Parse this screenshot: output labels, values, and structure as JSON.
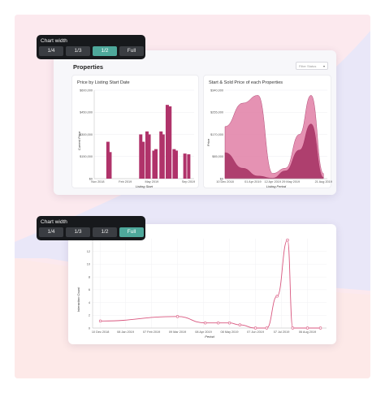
{
  "toolbar_top": {
    "title": "Chart width",
    "options": [
      "1/4",
      "1/3",
      "1/2",
      "Full"
    ],
    "selected": "1/2"
  },
  "toolbar_bottom": {
    "title": "Chart width",
    "options": [
      "1/4",
      "1/3",
      "1/2",
      "Full"
    ],
    "selected": "Full"
  },
  "dashboard": {
    "title": "Properties",
    "filter_placeholder": "Filter Status"
  },
  "colors": {
    "bar": "#b0336a",
    "area_light": "#e07fa6",
    "area_dark": "#a02a5c",
    "line": "#d9577f",
    "accent": "#4ea89b"
  },
  "chart_data": [
    {
      "type": "bar",
      "title": "Price by Listing Start Date",
      "xlabel": "Listing Start",
      "ylabel": "Current Price",
      "yticks": [
        "$0",
        "$150,000",
        "$300,000",
        "$450,000",
        "$600,000"
      ],
      "ylim": [
        0,
        600000
      ],
      "xticks": [
        "Nov 2018",
        "Feb 2019",
        "May 2019",
        "Sep 2019"
      ],
      "x": [
        "2018-12-05",
        "2018-12-12",
        "2019-03-25",
        "2019-04-02",
        "2019-04-15",
        "2019-04-22",
        "2019-05-08",
        "2019-05-15",
        "2019-06-01",
        "2019-06-08",
        "2019-06-22",
        "2019-07-01",
        "2019-07-15",
        "2019-07-22",
        "2019-08-20",
        "2019-09-02"
      ],
      "values": [
        250000,
        180000,
        300000,
        250000,
        320000,
        300000,
        190000,
        200000,
        320000,
        300000,
        500000,
        490000,
        200000,
        190000,
        170000,
        165000
      ]
    },
    {
      "type": "area",
      "title": "Start & Sold Price of each Properties",
      "xlabel": "Listing Period",
      "ylabel": "Price",
      "yticks": [
        "$0",
        "$85,000",
        "$170,000",
        "$255,000",
        "$340,000"
      ],
      "ylim": [
        0,
        340000
      ],
      "xticks": [
        "10 Dec 2018",
        "01 Apr 2019",
        "12 Apr 2019",
        "29 May 2019",
        "21 Aug 2019"
      ],
      "series": [
        {
          "x": [
            "2018-12-10",
            "2019-01-25",
            "2019-03-05",
            "2019-04-12",
            "2019-05-15",
            "2019-06-20",
            "2019-07-20",
            "2019-08-21"
          ],
          "values": [
            200000,
            290000,
            320000,
            20000,
            40000,
            170000,
            320000,
            20000
          ]
        },
        {
          "x": [
            "2018-12-10",
            "2019-01-25",
            "2019-03-05",
            "2019-04-12",
            "2019-05-15",
            "2019-06-20",
            "2019-07-20",
            "2019-08-21"
          ],
          "values": [
            100000,
            40000,
            10000,
            2000,
            30000,
            110000,
            210000,
            5000
          ]
        }
      ]
    },
    {
      "type": "line",
      "xlabel": "Period",
      "ylabel": "Interaction Count",
      "yticks": [
        "0",
        "2",
        "4",
        "6",
        "8",
        "10",
        "12"
      ],
      "ylim": [
        0,
        14
      ],
      "xticks": [
        "10 Dec 2018",
        "08 Jan 2019",
        "07 Feb 2019",
        "09 Mar 2019",
        "08 Apr 2019",
        "08 May 2019",
        "07 Jun 2019",
        "07 Jul 2019",
        "06 Aug 2019"
      ],
      "x": [
        "2018-12-10",
        "2019-03-09",
        "2019-04-10",
        "2019-04-25",
        "2019-05-08",
        "2019-05-20",
        "2019-06-07",
        "2019-06-20",
        "2019-07-02",
        "2019-07-14",
        "2019-07-20",
        "2019-08-06",
        "2019-08-21"
      ],
      "values": [
        1.1,
        1.8,
        0.8,
        0.8,
        0.8,
        0.5,
        0,
        0,
        5,
        13.8,
        0,
        0,
        0
      ]
    }
  ]
}
